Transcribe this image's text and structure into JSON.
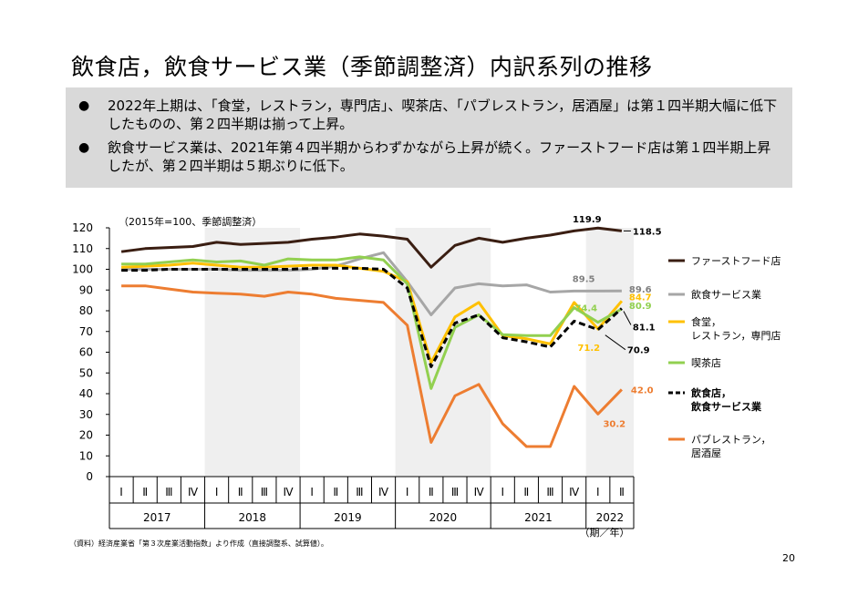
{
  "title": "飲食店，飲食サービス業（季節調整済）内訳系列の推移",
  "bullets": [
    "2022年上期は、「食堂，レストラン，専門店」、喫茶店、「パブレストラン，居酒屋」は第１四半期大幅に低下したものの、第２四半期は揃って上昇。",
    "飲食サービス業は、2021年第４四半期からわずかながら上昇が続く。ファーストフード店は第１四半期上昇したが、第２四半期は５期ぶりに低下。"
  ],
  "bullet_glyph": "●",
  "source": "（資料）経済産業省「第３次産業活動指数」より作成（直接調整系、試算値）。",
  "page_number": "20",
  "chart_data": {
    "type": "line",
    "unit_note": "（2015年=100、季節調整済）",
    "x_unit": "（期／年）",
    "years": [
      "2017",
      "2018",
      "2019",
      "2020",
      "2021",
      "2022"
    ],
    "quarters": [
      "Ⅰ",
      "Ⅱ",
      "Ⅲ",
      "Ⅳ",
      "Ⅰ",
      "Ⅱ",
      "Ⅲ",
      "Ⅳ",
      "Ⅰ",
      "Ⅱ",
      "Ⅲ",
      "Ⅳ",
      "Ⅰ",
      "Ⅱ",
      "Ⅲ",
      "Ⅳ",
      "Ⅰ",
      "Ⅱ",
      "Ⅲ",
      "Ⅳ",
      "Ⅰ",
      "Ⅱ"
    ],
    "ylim": [
      0,
      120
    ],
    "yticks": [
      "0",
      "10",
      "20",
      "30",
      "40",
      "50",
      "60",
      "70",
      "80",
      "90",
      "100",
      "110",
      "120"
    ],
    "shaded_years": [
      "2018",
      "2020",
      "2022"
    ],
    "series": [
      {
        "name": "ファーストフード店",
        "color": "#3a1e12",
        "dashed": false,
        "values": [
          108.5,
          110,
          110.5,
          111,
          113,
          112,
          112.5,
          113,
          114.5,
          115.5,
          117,
          116,
          114.5,
          101,
          111.5,
          115,
          113,
          115,
          116.5,
          118.5,
          119.9,
          118.5
        ]
      },
      {
        "name": "飲食サービス業",
        "color": "#a6a6a6",
        "dashed": false,
        "values": [
          100,
          100,
          100,
          100,
          100,
          99.5,
          99.5,
          99.5,
          100,
          101.5,
          105,
          108,
          94,
          78,
          91,
          93,
          92,
          92.5,
          89,
          89.5,
          89.5,
          89.6
        ]
      },
      {
        "name": "食堂，レストラン，専門店",
        "color": "#ffc000",
        "dashed": false,
        "values": [
          101,
          101.5,
          102,
          103,
          102,
          101,
          101,
          101.5,
          102,
          102,
          100.5,
          99,
          94,
          55,
          77,
          84,
          68,
          66.5,
          64,
          84,
          71.2,
          84.7
        ]
      },
      {
        "name": "喫茶店",
        "color": "#92d050",
        "dashed": false,
        "values": [
          102.5,
          102.5,
          103.5,
          104.5,
          103.5,
          104,
          102,
          105,
          104.5,
          104.5,
          106,
          104.5,
          93,
          42.5,
          72,
          78,
          68.5,
          68,
          68,
          81.5,
          74.4,
          80.9
        ]
      },
      {
        "name": "飲食店，飲食サービス業",
        "color": "#000000",
        "dashed": true,
        "values": [
          99.5,
          99.5,
          100,
          100,
          100,
          100,
          100,
          100,
          100.5,
          100.5,
          100.5,
          100,
          91,
          53,
          74,
          78,
          67,
          65,
          62.5,
          75,
          70.9,
          81.1
        ]
      },
      {
        "name": "パブレストラン，居酒屋",
        "color": "#ed7d31",
        "dashed": false,
        "values": [
          92,
          92,
          90.5,
          89,
          88.5,
          88,
          87,
          89,
          88,
          86,
          85,
          84,
          73,
          16.5,
          39,
          44.5,
          25.5,
          14.5,
          14.5,
          43.5,
          30.2,
          42.0
        ]
      }
    ],
    "data_labels": [
      {
        "text": "119.9",
        "color": "#000000"
      },
      {
        "text": "118.5",
        "color": "#000000"
      },
      {
        "text": "89.5",
        "color": "#808080"
      },
      {
        "text": "89.6",
        "color": "#808080"
      },
      {
        "text": "84.7",
        "color": "#ffc000"
      },
      {
        "text": "80.9",
        "color": "#92d050"
      },
      {
        "text": "74.4",
        "color": "#92d050"
      },
      {
        "text": "81.1",
        "color": "#000000"
      },
      {
        "text": "71.2",
        "color": "#ffc000"
      },
      {
        "text": "70.9",
        "color": "#000000"
      },
      {
        "text": "42.0",
        "color": "#ed7d31"
      },
      {
        "text": "30.2",
        "color": "#ed7d31"
      }
    ],
    "legend": [
      {
        "label": "ファーストフード店",
        "color": "#3a1e12",
        "dashed": false,
        "bold": false
      },
      {
        "label": "飲食サービス業",
        "color": "#a6a6a6",
        "dashed": false,
        "bold": false
      },
      {
        "label": "食堂，レストラン，専門店",
        "color": "#ffc000",
        "dashed": false,
        "bold": false
      },
      {
        "label": "喫茶店",
        "color": "#92d050",
        "dashed": false,
        "bold": false
      },
      {
        "label": "飲食店，飲食サービス業",
        "color": "#000000",
        "dashed": true,
        "bold": true
      },
      {
        "label": "パブレストラン，居酒屋",
        "color": "#ed7d31",
        "dashed": false,
        "bold": false
      }
    ]
  }
}
